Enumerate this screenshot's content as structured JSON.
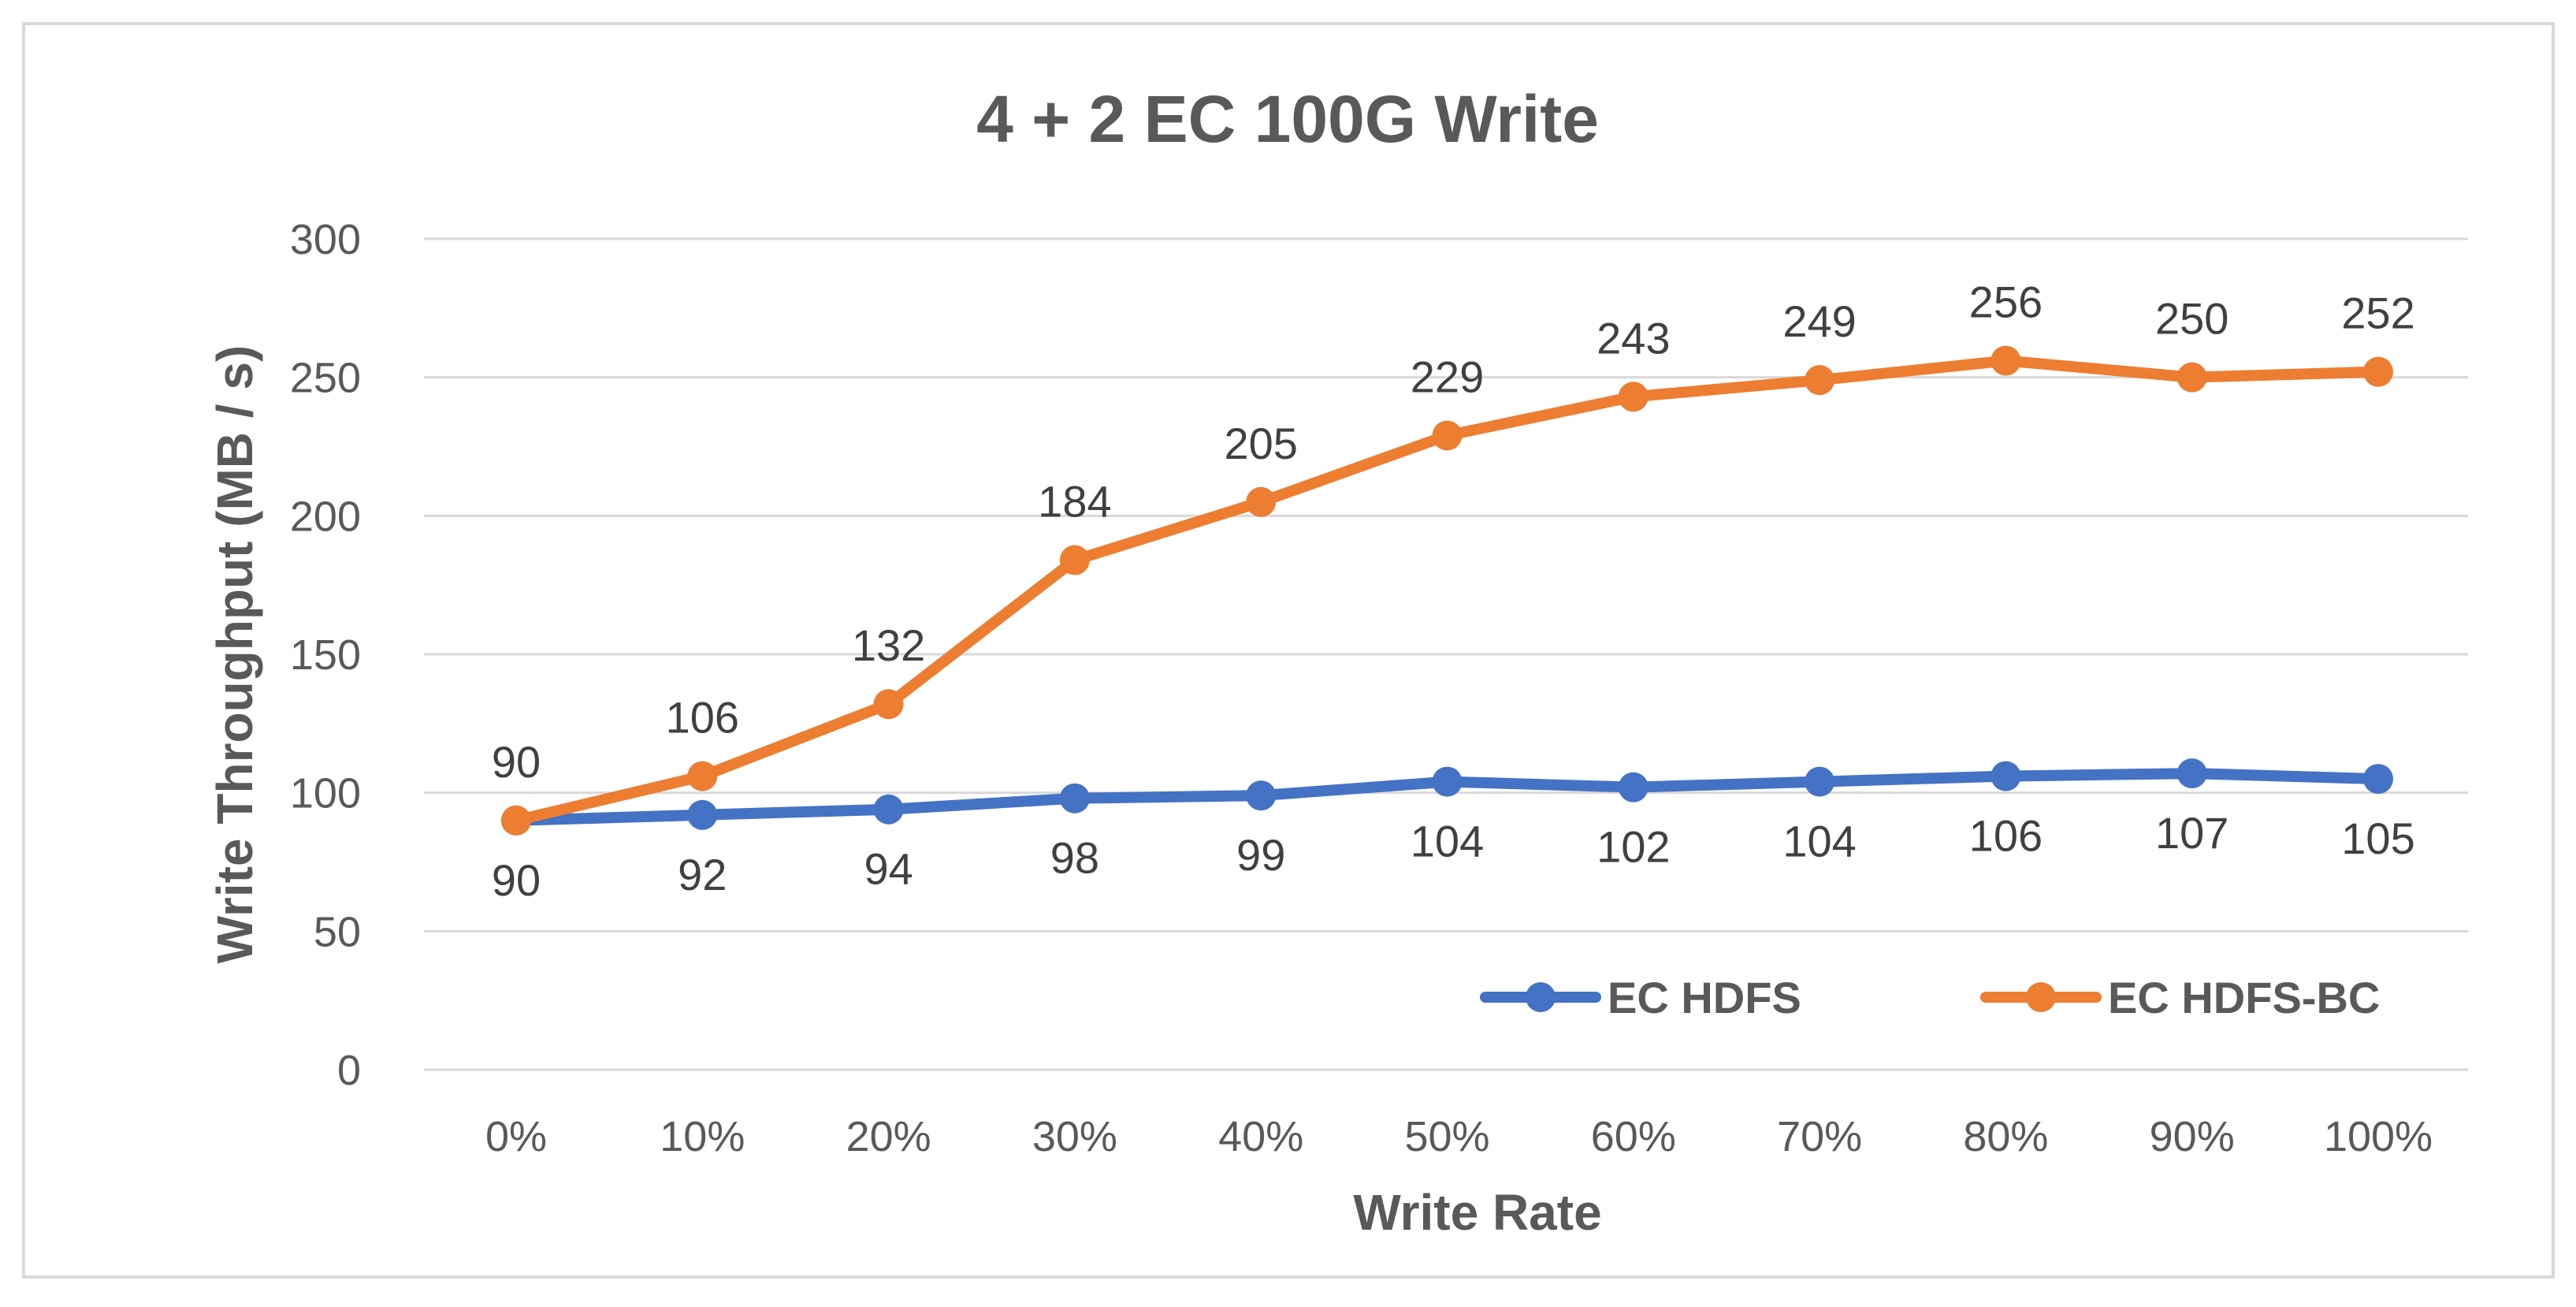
{
  "chart_data": {
    "type": "line",
    "title": "4 + 2 EC 100G Write",
    "xlabel": "Write Rate",
    "ylabel": "Write Throughput (MB / s)",
    "ylim": [
      0,
      300
    ],
    "yticks": [
      0,
      50,
      100,
      150,
      200,
      250,
      300
    ],
    "grid": true,
    "legend_position": "bottom-right inside plot",
    "categories": [
      "0%",
      "10%",
      "20%",
      "30%",
      "40%",
      "50%",
      "60%",
      "70%",
      "80%",
      "90%",
      "100%"
    ],
    "series": [
      {
        "name": "EC HDFS",
        "color": "#4472C4",
        "values": [
          90,
          92,
          94,
          98,
          99,
          104,
          102,
          104,
          106,
          107,
          105
        ],
        "labels": [
          "90",
          "92",
          "94",
          "98",
          "99",
          "104",
          "102",
          "104",
          "106",
          "107",
          "105"
        ],
        "label_position": "below"
      },
      {
        "name": "EC HDFS-BC",
        "color": "#ED7D31",
        "values": [
          90,
          106,
          132,
          184,
          205,
          229,
          243,
          249,
          256,
          250,
          252
        ],
        "labels": [
          "90",
          "106",
          "132",
          "184",
          "205",
          "229",
          "243",
          "249",
          "256",
          "250",
          "252"
        ],
        "label_position": "above"
      }
    ]
  },
  "colors": {
    "frame": "#D9D9D9",
    "gridline": "#D9D9D9",
    "axis_text": "#595959",
    "title_text": "#595959",
    "label_text": "#404040"
  }
}
